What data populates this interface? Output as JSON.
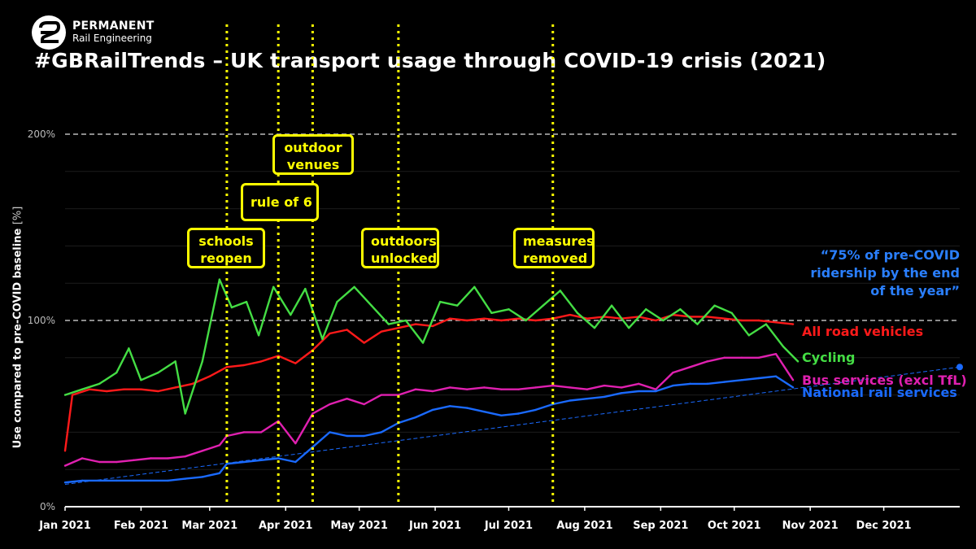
{
  "brand": {
    "line1": "PERMANENT",
    "line2": "Rail Engineering"
  },
  "title": "#GBRailTrends – UK transport usage through COVID-19 crisis (2021)",
  "chart_data": {
    "type": "line",
    "title": "#GBRailTrends – UK transport usage through COVID-19 crisis (2021)",
    "ylabel": "Use compared to pre-COVID baseline",
    "ylabel_unit": "[%]",
    "ylim": [
      0,
      200
    ],
    "yticks": [
      {
        "value": 0,
        "label": "0%"
      },
      {
        "value": 100,
        "label": "100%"
      },
      {
        "value": 200,
        "label": "200%"
      }
    ],
    "xlim": [
      "2021-01-01",
      "2022-01-01"
    ],
    "xticks": [
      {
        "date": "2021-01-01",
        "label": "Jan 2021"
      },
      {
        "date": "2021-02-01",
        "label": "Feb 2021"
      },
      {
        "date": "2021-03-01",
        "label": "Mar 2021"
      },
      {
        "date": "2021-04-01",
        "label": "Apr 2021"
      },
      {
        "date": "2021-05-01",
        "label": "May 2021"
      },
      {
        "date": "2021-06-01",
        "label": "Jun 2021"
      },
      {
        "date": "2021-07-01",
        "label": "Jul 2021"
      },
      {
        "date": "2021-08-01",
        "label": "Aug 2021"
      },
      {
        "date": "2021-09-01",
        "label": "Sep 2021"
      },
      {
        "date": "2021-10-01",
        "label": "Oct 2021"
      },
      {
        "date": "2021-11-01",
        "label": "Nov 2021"
      },
      {
        "date": "2021-12-01",
        "label": "Dec 2021"
      }
    ],
    "grid": "horizontal dashed at 100% and 200%",
    "series": [
      {
        "name": "All road vehicles",
        "color": "#ff1a1a",
        "points": [
          [
            "2021-01-01",
            30
          ],
          [
            "2021-01-04",
            60
          ],
          [
            "2021-01-11",
            63
          ],
          [
            "2021-01-18",
            62
          ],
          [
            "2021-01-25",
            63
          ],
          [
            "2021-02-01",
            63
          ],
          [
            "2021-02-08",
            62
          ],
          [
            "2021-02-15",
            64
          ],
          [
            "2021-02-22",
            66
          ],
          [
            "2021-03-01",
            70
          ],
          [
            "2021-03-08",
            75
          ],
          [
            "2021-03-15",
            76
          ],
          [
            "2021-03-22",
            78
          ],
          [
            "2021-03-29",
            81
          ],
          [
            "2021-04-05",
            77
          ],
          [
            "2021-04-12",
            84
          ],
          [
            "2021-04-19",
            93
          ],
          [
            "2021-04-26",
            95
          ],
          [
            "2021-05-03",
            88
          ],
          [
            "2021-05-10",
            94
          ],
          [
            "2021-05-17",
            96
          ],
          [
            "2021-05-24",
            98
          ],
          [
            "2021-05-31",
            97
          ],
          [
            "2021-06-07",
            101
          ],
          [
            "2021-06-14",
            100
          ],
          [
            "2021-06-21",
            101
          ],
          [
            "2021-06-28",
            100
          ],
          [
            "2021-07-05",
            101
          ],
          [
            "2021-07-12",
            100
          ],
          [
            "2021-07-19",
            101
          ],
          [
            "2021-07-26",
            103
          ],
          [
            "2021-08-02",
            101
          ],
          [
            "2021-08-09",
            102
          ],
          [
            "2021-08-16",
            101
          ],
          [
            "2021-08-23",
            102
          ],
          [
            "2021-08-30",
            100
          ],
          [
            "2021-09-06",
            103
          ],
          [
            "2021-09-13",
            102
          ],
          [
            "2021-09-20",
            102
          ],
          [
            "2021-09-27",
            101
          ],
          [
            "2021-10-04",
            100
          ],
          [
            "2021-10-11",
            100
          ],
          [
            "2021-10-18",
            99
          ],
          [
            "2021-10-25",
            98
          ]
        ]
      },
      {
        "name": "Cycling",
        "color": "#44dd44",
        "points": [
          [
            "2021-01-01",
            60
          ],
          [
            "2021-01-08",
            63
          ],
          [
            "2021-01-15",
            66
          ],
          [
            "2021-01-22",
            72
          ],
          [
            "2021-01-27",
            85
          ],
          [
            "2021-02-01",
            68
          ],
          [
            "2021-02-08",
            72
          ],
          [
            "2021-02-15",
            78
          ],
          [
            "2021-02-19",
            50
          ],
          [
            "2021-02-26",
            78
          ],
          [
            "2021-03-05",
            122
          ],
          [
            "2021-03-10",
            107
          ],
          [
            "2021-03-16",
            110
          ],
          [
            "2021-03-21",
            92
          ],
          [
            "2021-03-27",
            118
          ],
          [
            "2021-04-03",
            103
          ],
          [
            "2021-04-09",
            117
          ],
          [
            "2021-04-16",
            90
          ],
          [
            "2021-04-22",
            110
          ],
          [
            "2021-04-29",
            118
          ],
          [
            "2021-05-06",
            108
          ],
          [
            "2021-05-13",
            98
          ],
          [
            "2021-05-20",
            100
          ],
          [
            "2021-05-27",
            88
          ],
          [
            "2021-06-03",
            110
          ],
          [
            "2021-06-10",
            108
          ],
          [
            "2021-06-17",
            118
          ],
          [
            "2021-06-24",
            104
          ],
          [
            "2021-07-01",
            106
          ],
          [
            "2021-07-08",
            100
          ],
          [
            "2021-07-15",
            108
          ],
          [
            "2021-07-22",
            116
          ],
          [
            "2021-07-29",
            104
          ],
          [
            "2021-08-05",
            96
          ],
          [
            "2021-08-12",
            108
          ],
          [
            "2021-08-19",
            96
          ],
          [
            "2021-08-26",
            106
          ],
          [
            "2021-09-02",
            100
          ],
          [
            "2021-09-09",
            106
          ],
          [
            "2021-09-16",
            98
          ],
          [
            "2021-09-23",
            108
          ],
          [
            "2021-09-30",
            104
          ],
          [
            "2021-10-07",
            92
          ],
          [
            "2021-10-14",
            98
          ],
          [
            "2021-10-21",
            86
          ],
          [
            "2021-10-27",
            78
          ]
        ]
      },
      {
        "name": "Bus services (excl TfL)",
        "color": "#e020b0",
        "points": [
          [
            "2021-01-01",
            22
          ],
          [
            "2021-01-08",
            26
          ],
          [
            "2021-01-15",
            24
          ],
          [
            "2021-01-22",
            24
          ],
          [
            "2021-01-29",
            25
          ],
          [
            "2021-02-05",
            26
          ],
          [
            "2021-02-12",
            26
          ],
          [
            "2021-02-19",
            27
          ],
          [
            "2021-02-26",
            30
          ],
          [
            "2021-03-05",
            33
          ],
          [
            "2021-03-08",
            38
          ],
          [
            "2021-03-15",
            40
          ],
          [
            "2021-03-22",
            40
          ],
          [
            "2021-03-29",
            46
          ],
          [
            "2021-04-05",
            34
          ],
          [
            "2021-04-12",
            50
          ],
          [
            "2021-04-19",
            55
          ],
          [
            "2021-04-26",
            58
          ],
          [
            "2021-05-03",
            55
          ],
          [
            "2021-05-10",
            60
          ],
          [
            "2021-05-17",
            60
          ],
          [
            "2021-05-24",
            63
          ],
          [
            "2021-05-31",
            62
          ],
          [
            "2021-06-07",
            64
          ],
          [
            "2021-06-14",
            63
          ],
          [
            "2021-06-21",
            64
          ],
          [
            "2021-06-28",
            63
          ],
          [
            "2021-07-05",
            63
          ],
          [
            "2021-07-12",
            64
          ],
          [
            "2021-07-19",
            65
          ],
          [
            "2021-07-26",
            64
          ],
          [
            "2021-08-02",
            63
          ],
          [
            "2021-08-09",
            65
          ],
          [
            "2021-08-16",
            64
          ],
          [
            "2021-08-23",
            66
          ],
          [
            "2021-08-30",
            63
          ],
          [
            "2021-09-06",
            72
          ],
          [
            "2021-09-13",
            75
          ],
          [
            "2021-09-20",
            78
          ],
          [
            "2021-09-27",
            80
          ],
          [
            "2021-10-04",
            80
          ],
          [
            "2021-10-11",
            80
          ],
          [
            "2021-10-18",
            82
          ],
          [
            "2021-10-25",
            68
          ]
        ]
      },
      {
        "name": "National rail services",
        "color": "#1a6aff",
        "points": [
          [
            "2021-01-01",
            13
          ],
          [
            "2021-01-08",
            14
          ],
          [
            "2021-01-15",
            14
          ],
          [
            "2021-01-22",
            14
          ],
          [
            "2021-01-29",
            14
          ],
          [
            "2021-02-05",
            14
          ],
          [
            "2021-02-12",
            14
          ],
          [
            "2021-02-19",
            15
          ],
          [
            "2021-02-26",
            16
          ],
          [
            "2021-03-05",
            18
          ],
          [
            "2021-03-08",
            23
          ],
          [
            "2021-03-15",
            24
          ],
          [
            "2021-03-22",
            25
          ],
          [
            "2021-03-29",
            26
          ],
          [
            "2021-04-05",
            24
          ],
          [
            "2021-04-12",
            32
          ],
          [
            "2021-04-19",
            40
          ],
          [
            "2021-04-26",
            38
          ],
          [
            "2021-05-03",
            38
          ],
          [
            "2021-05-10",
            40
          ],
          [
            "2021-05-17",
            45
          ],
          [
            "2021-05-24",
            48
          ],
          [
            "2021-05-31",
            52
          ],
          [
            "2021-06-07",
            54
          ],
          [
            "2021-06-14",
            53
          ],
          [
            "2021-06-21",
            51
          ],
          [
            "2021-06-28",
            49
          ],
          [
            "2021-07-05",
            50
          ],
          [
            "2021-07-12",
            52
          ],
          [
            "2021-07-19",
            55
          ],
          [
            "2021-07-26",
            57
          ],
          [
            "2021-08-02",
            58
          ],
          [
            "2021-08-09",
            59
          ],
          [
            "2021-08-16",
            61
          ],
          [
            "2021-08-23",
            62
          ],
          [
            "2021-08-30",
            62
          ],
          [
            "2021-09-06",
            65
          ],
          [
            "2021-09-13",
            66
          ],
          [
            "2021-09-20",
            66
          ],
          [
            "2021-09-27",
            67
          ],
          [
            "2021-10-04",
            68
          ],
          [
            "2021-10-11",
            69
          ],
          [
            "2021-10-18",
            70
          ],
          [
            "2021-10-25",
            64
          ]
        ]
      }
    ],
    "trendline": {
      "color": "#1a6aff",
      "points": [
        [
          "2021-01-01",
          12
        ],
        [
          "2022-01-01",
          75
        ]
      ],
      "end_marker": true
    },
    "milestones": [
      {
        "date": "2021-03-08",
        "label": "schools\nreopen"
      },
      {
        "date": "2021-03-29",
        "label": "rule of 6"
      },
      {
        "date": "2021-04-12",
        "label": "outdoor\nvenues"
      },
      {
        "date": "2021-05-17",
        "label": "outdoors\nunlocked"
      },
      {
        "date": "2021-07-19",
        "label": "measures\nremoved"
      }
    ]
  },
  "quote": "“75% of pre-COVID ridership by the end of the year”",
  "series_labels": {
    "road": "All road vehicles",
    "cycling": "Cycling",
    "bus": "Bus services (excl TfL)",
    "rail": "National rail services"
  },
  "colors": {
    "milestone": "#ffff00",
    "road": "#ff1a1a",
    "cycling": "#44dd44",
    "bus": "#e020b0",
    "rail": "#1a6aff"
  }
}
